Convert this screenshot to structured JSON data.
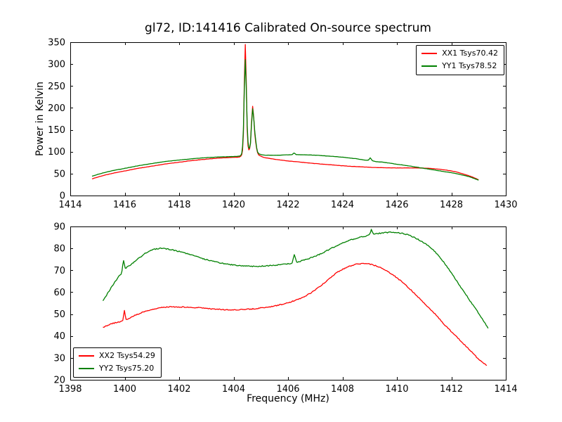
{
  "title": "gl72, ID:141416 Calibrated On-source spectrum",
  "chart_data": [
    {
      "type": "line",
      "title": "gl72, ID:141416 Calibrated On-source spectrum",
      "xlabel": "",
      "ylabel": "Power in Kelvin",
      "xlim": [
        1414,
        1430
      ],
      "ylim": [
        0,
        350
      ],
      "xticks": [
        1414,
        1416,
        1418,
        1420,
        1422,
        1424,
        1426,
        1428,
        1430
      ],
      "yticks": [
        0,
        50,
        100,
        150,
        200,
        250,
        300,
        350
      ],
      "grid": false,
      "legend_position": "upper-right",
      "noise_amplitude": 0.5,
      "legend": [
        {
          "label": "XX1 Tsys70.42",
          "color": "#ff0000"
        },
        {
          "label": "YY1 Tsys78.52",
          "color": "#008000"
        }
      ],
      "series": [
        {
          "name": "XX1",
          "color": "#ff0000",
          "points": [
            [
              1414.8,
              38
            ],
            [
              1415.0,
              42
            ],
            [
              1415.5,
              50
            ],
            [
              1416.0,
              56
            ],
            [
              1416.5,
              62
            ],
            [
              1417.0,
              67
            ],
            [
              1417.5,
              72
            ],
            [
              1418.0,
              76
            ],
            [
              1418.5,
              80
            ],
            [
              1419.0,
              83
            ],
            [
              1419.5,
              85.5
            ],
            [
              1420.0,
              87
            ],
            [
              1420.2,
              88
            ],
            [
              1420.3,
              93
            ],
            [
              1420.36,
              140
            ],
            [
              1420.43,
              345
            ],
            [
              1420.5,
              150
            ],
            [
              1420.56,
              104
            ],
            [
              1420.62,
              120
            ],
            [
              1420.7,
              204
            ],
            [
              1420.78,
              140
            ],
            [
              1420.88,
              98
            ],
            [
              1421.0,
              90
            ],
            [
              1421.3,
              85
            ],
            [
              1421.6,
              82
            ],
            [
              1422.0,
              79
            ],
            [
              1422.5,
              76
            ],
            [
              1423.0,
              73
            ],
            [
              1423.5,
              70.5
            ],
            [
              1424.0,
              68
            ],
            [
              1424.5,
              66
            ],
            [
              1425.0,
              64.5
            ],
            [
              1425.5,
              63.5
            ],
            [
              1426.0,
              63
            ],
            [
              1426.5,
              63
            ],
            [
              1427.0,
              62.5
            ],
            [
              1427.4,
              61
            ],
            [
              1427.8,
              58
            ],
            [
              1428.1,
              55
            ],
            [
              1428.4,
              50
            ],
            [
              1428.7,
              44
            ],
            [
              1429.0,
              36
            ]
          ]
        },
        {
          "name": "YY1",
          "color": "#008000",
          "points": [
            [
              1414.8,
              44
            ],
            [
              1415.0,
              48
            ],
            [
              1415.5,
              56
            ],
            [
              1416.0,
              62
            ],
            [
              1416.5,
              68
            ],
            [
              1417.0,
              73
            ],
            [
              1417.5,
              77.5
            ],
            [
              1418.0,
              81
            ],
            [
              1418.5,
              84
            ],
            [
              1419.0,
              86.5
            ],
            [
              1419.5,
              88
            ],
            [
              1420.0,
              89
            ],
            [
              1420.2,
              90
            ],
            [
              1420.3,
              96
            ],
            [
              1420.36,
              150
            ],
            [
              1420.43,
              310
            ],
            [
              1420.5,
              160
            ],
            [
              1420.56,
              108
            ],
            [
              1420.62,
              118
            ],
            [
              1420.7,
              198
            ],
            [
              1420.78,
              145
            ],
            [
              1420.88,
              100
            ],
            [
              1421.0,
              94
            ],
            [
              1421.3,
              92
            ],
            [
              1421.6,
              92
            ],
            [
              1422.0,
              93
            ],
            [
              1422.15,
              93.5
            ],
            [
              1422.22,
              97
            ],
            [
              1422.3,
              93.5
            ],
            [
              1422.6,
              93
            ],
            [
              1423.0,
              92
            ],
            [
              1423.5,
              90
            ],
            [
              1424.0,
              87.5
            ],
            [
              1424.5,
              84
            ],
            [
              1424.95,
              80.5
            ],
            [
              1425.02,
              86
            ],
            [
              1425.1,
              79.5
            ],
            [
              1425.5,
              76
            ],
            [
              1426.0,
              71.5
            ],
            [
              1426.5,
              67
            ],
            [
              1427.0,
              62
            ],
            [
              1427.4,
              58
            ],
            [
              1427.8,
              54
            ],
            [
              1428.1,
              51
            ],
            [
              1428.4,
              47
            ],
            [
              1428.7,
              42
            ],
            [
              1429.0,
              35
            ]
          ]
        }
      ]
    },
    {
      "type": "line",
      "title": "",
      "xlabel": "Frequency (MHz)",
      "ylabel": "",
      "xlim": [
        1398,
        1414
      ],
      "ylim": [
        20,
        90
      ],
      "xticks": [
        1398,
        1400,
        1402,
        1404,
        1406,
        1408,
        1410,
        1412,
        1414
      ],
      "yticks": [
        20,
        30,
        40,
        50,
        60,
        70,
        80,
        90
      ],
      "grid": false,
      "legend_position": "lower-left",
      "noise_amplitude": 0.45,
      "legend": [
        {
          "label": "XX2 Tsys54.29",
          "color": "#ff0000"
        },
        {
          "label": "YY2 Tsys75.20",
          "color": "#008000"
        }
      ],
      "series": [
        {
          "name": "XX2",
          "color": "#ff0000",
          "points": [
            [
              1399.2,
              44
            ],
            [
              1399.5,
              45.5
            ],
            [
              1399.8,
              46.5
            ],
            [
              1399.93,
              47
            ],
            [
              1399.99,
              51.5
            ],
            [
              1400.05,
              47.5
            ],
            [
              1400.3,
              49
            ],
            [
              1400.6,
              50.5
            ],
            [
              1401.0,
              52
            ],
            [
              1401.4,
              53
            ],
            [
              1401.8,
              53.3
            ],
            [
              1402.2,
              53.2
            ],
            [
              1402.6,
              53
            ],
            [
              1403.0,
              52.6
            ],
            [
              1403.4,
              52.2
            ],
            [
              1403.8,
              52
            ],
            [
              1404.2,
              52
            ],
            [
              1404.6,
              52.3
            ],
            [
              1405.0,
              52.8
            ],
            [
              1405.4,
              53.5
            ],
            [
              1405.8,
              54.5
            ],
            [
              1406.2,
              56
            ],
            [
              1406.6,
              58
            ],
            [
              1407.0,
              61
            ],
            [
              1407.4,
              65
            ],
            [
              1407.8,
              69
            ],
            [
              1408.2,
              71.5
            ],
            [
              1408.5,
              72.7
            ],
            [
              1408.8,
              73
            ],
            [
              1409.1,
              72.5
            ],
            [
              1409.4,
              71.2
            ],
            [
              1409.7,
              69.2
            ],
            [
              1410.0,
              66.5
            ],
            [
              1410.3,
              63.5
            ],
            [
              1410.6,
              60
            ],
            [
              1411.0,
              55
            ],
            [
              1411.4,
              50
            ],
            [
              1411.8,
              44.5
            ],
            [
              1412.2,
              39.5
            ],
            [
              1412.6,
              34.5
            ],
            [
              1413.0,
              29.5
            ],
            [
              1413.3,
              26.5
            ]
          ]
        },
        {
          "name": "YY2",
          "color": "#008000",
          "points": [
            [
              1399.2,
              56
            ],
            [
              1399.4,
              60
            ],
            [
              1399.6,
              64
            ],
            [
              1399.8,
              67.5
            ],
            [
              1399.9,
              69.5
            ],
            [
              1399.96,
              74.5
            ],
            [
              1400.02,
              71
            ],
            [
              1400.15,
              72
            ],
            [
              1400.35,
              73.8
            ],
            [
              1400.6,
              76.3
            ],
            [
              1400.9,
              78.8
            ],
            [
              1401.1,
              79.6
            ],
            [
              1401.35,
              80
            ],
            [
              1401.6,
              79.6
            ],
            [
              1402.0,
              78.6
            ],
            [
              1402.4,
              77.2
            ],
            [
              1402.8,
              75.6
            ],
            [
              1403.2,
              74.2
            ],
            [
              1403.6,
              73.2
            ],
            [
              1404.0,
              72.4
            ],
            [
              1404.4,
              72
            ],
            [
              1404.8,
              71.8
            ],
            [
              1405.2,
              72
            ],
            [
              1405.6,
              72.4
            ],
            [
              1406.0,
              73
            ],
            [
              1406.15,
              73.3
            ],
            [
              1406.23,
              77
            ],
            [
              1406.32,
              73.8
            ],
            [
              1406.6,
              74.8
            ],
            [
              1407.0,
              76.4
            ],
            [
              1407.4,
              78.8
            ],
            [
              1407.8,
              81.3
            ],
            [
              1408.2,
              83.4
            ],
            [
              1408.6,
              85
            ],
            [
              1409.0,
              86.4
            ],
            [
              1409.06,
              88.5
            ],
            [
              1409.14,
              86.6
            ],
            [
              1409.5,
              87.1
            ],
            [
              1409.8,
              87.3
            ],
            [
              1410.1,
              87
            ],
            [
              1410.4,
              86.2
            ],
            [
              1410.7,
              84.6
            ],
            [
              1411.0,
              82.5
            ],
            [
              1411.3,
              79.6
            ],
            [
              1411.6,
              75.6
            ],
            [
              1411.9,
              70.6
            ],
            [
              1412.2,
              65
            ],
            [
              1412.5,
              59.5
            ],
            [
              1412.8,
              54
            ],
            [
              1413.1,
              48.5
            ],
            [
              1413.35,
              43.5
            ]
          ]
        }
      ]
    }
  ]
}
